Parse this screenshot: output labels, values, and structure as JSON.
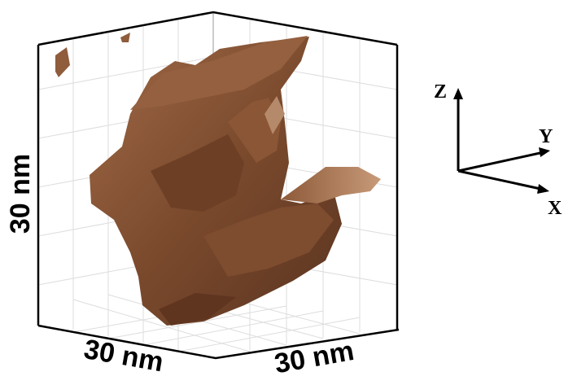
{
  "scale_labels": {
    "vertical": "30 nm",
    "bottom_left": "30 nm",
    "bottom_right": "30 nm"
  },
  "axes": {
    "z": "Z",
    "y": "Y",
    "x": "X"
  }
}
